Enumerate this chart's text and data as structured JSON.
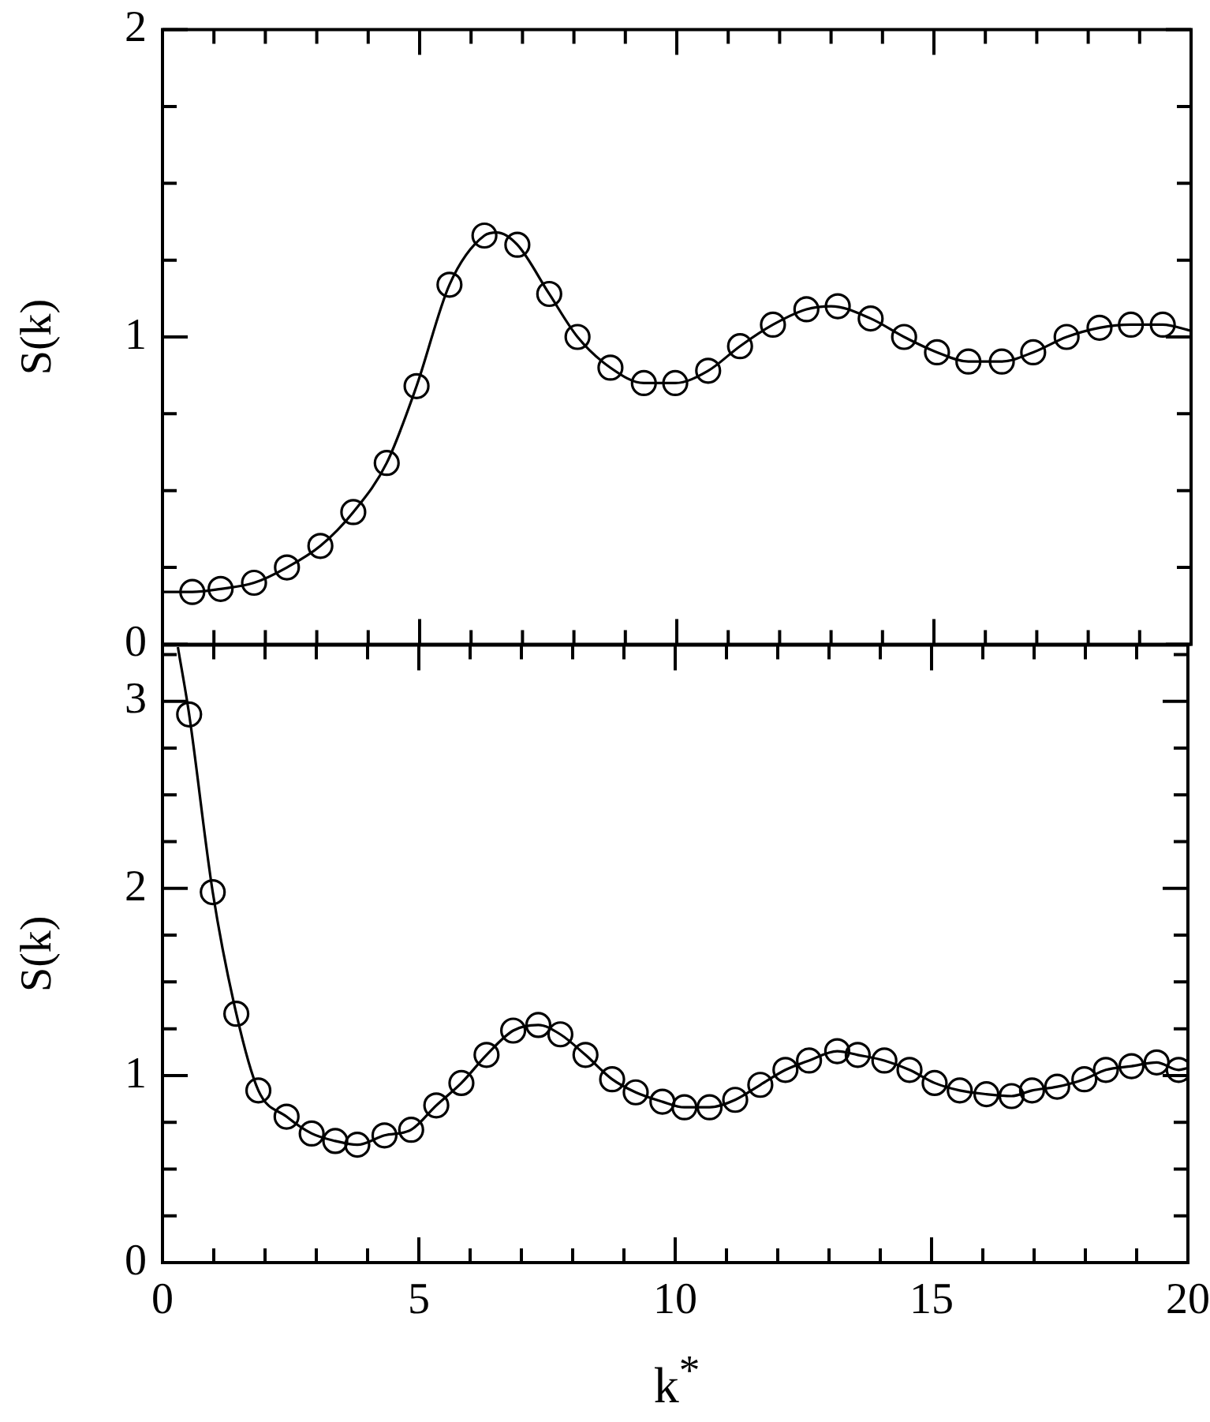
{
  "chart_data": [
    {
      "type": "scatter",
      "ylabel": "S(k)",
      "xlim": [
        0,
        20
      ],
      "ylim": [
        0,
        2
      ],
      "tick_labels": "y",
      "grid": false,
      "legend": false,
      "marker": "circle",
      "xticks": [
        0,
        {
          "value": 1,
          "label": null
        },
        {
          "value": 2,
          "label": null
        },
        {
          "value": 3,
          "label": null
        },
        {
          "value": 4,
          "label": null
        },
        5,
        {
          "value": 6,
          "label": null
        },
        {
          "value": 7,
          "label": null
        },
        {
          "value": 8,
          "label": null
        },
        {
          "value": 9,
          "label": null
        },
        10,
        {
          "value": 11,
          "label": null
        },
        {
          "value": 12,
          "label": null
        },
        {
          "value": 13,
          "label": null
        },
        {
          "value": 14,
          "label": null
        },
        15,
        {
          "value": 16,
          "label": null
        },
        {
          "value": 17,
          "label": null
        },
        {
          "value": 18,
          "label": null
        },
        {
          "value": 19,
          "label": null
        },
        20
      ],
      "yticks": [
        0,
        {
          "value": 0.25,
          "label": null
        },
        {
          "value": 0.5,
          "label": null
        },
        {
          "value": 0.75,
          "label": null
        },
        1,
        {
          "value": 1.25,
          "label": null
        },
        {
          "value": 1.5,
          "label": null
        },
        {
          "value": 1.75,
          "label": null
        },
        2
      ],
      "series": [
        {
          "type": "scatter",
          "color": "#000000",
          "x": [
            0.58,
            1.13,
            1.78,
            2.42,
            3.07,
            3.71,
            4.36,
            4.94,
            5.58,
            6.26,
            6.9,
            7.52,
            8.07,
            8.71,
            9.36,
            9.97,
            10.61,
            11.23,
            11.87,
            12.52,
            13.13,
            13.77,
            14.42,
            15.06,
            15.67,
            16.32,
            16.93,
            17.58,
            18.22,
            18.83,
            19.45
          ],
          "values": [
            0.17,
            0.18,
            0.2,
            0.25,
            0.32,
            0.43,
            0.59,
            0.84,
            1.17,
            1.33,
            1.3,
            1.14,
            1.0,
            0.9,
            0.85,
            0.85,
            0.89,
            0.97,
            1.04,
            1.09,
            1.1,
            1.06,
            1.0,
            0.95,
            0.92,
            0.92,
            0.95,
            1.0,
            1.03,
            1.04,
            1.04
          ]
        },
        {
          "type": "line",
          "color": "#000000",
          "marker": "none",
          "x": [
            0,
            0.58,
            1.13,
            1.78,
            2.42,
            3.07,
            3.71,
            4.36,
            4.94,
            5.58,
            6.26,
            6.5,
            6.9,
            7.52,
            8.07,
            8.71,
            9.36,
            9.97,
            10.61,
            11.23,
            11.87,
            12.52,
            13.0,
            13.77,
            14.42,
            15.06,
            15.67,
            16.32,
            16.93,
            17.58,
            18.22,
            18.83,
            19.45,
            20
          ],
          "values": [
            0.17,
            0.17,
            0.18,
            0.2,
            0.25,
            0.32,
            0.43,
            0.59,
            0.84,
            1.17,
            1.33,
            1.34,
            1.3,
            1.14,
            1.0,
            0.9,
            0.85,
            0.85,
            0.89,
            0.97,
            1.04,
            1.09,
            1.1,
            1.06,
            1.0,
            0.95,
            0.92,
            0.92,
            0.95,
            1.0,
            1.03,
            1.04,
            1.04,
            1.02
          ]
        }
      ]
    },
    {
      "type": "scatter",
      "ylabel": "S(k)",
      "xlabel": "k$^{*}$",
      "xlim": [
        0,
        20
      ],
      "ylim": [
        0,
        3.3
      ],
      "grid": false,
      "legend": false,
      "marker": "circle",
      "xticks": [
        0,
        {
          "value": 1,
          "label": null
        },
        {
          "value": 2,
          "label": null
        },
        {
          "value": 3,
          "label": null
        },
        {
          "value": 4,
          "label": null
        },
        5,
        {
          "value": 6,
          "label": null
        },
        {
          "value": 7,
          "label": null
        },
        {
          "value": 8,
          "label": null
        },
        {
          "value": 9,
          "label": null
        },
        10,
        {
          "value": 11,
          "label": null
        },
        {
          "value": 12,
          "label": null
        },
        {
          "value": 13,
          "label": null
        },
        {
          "value": 14,
          "label": null
        },
        15,
        {
          "value": 16,
          "label": null
        },
        {
          "value": 17,
          "label": null
        },
        {
          "value": 18,
          "label": null
        },
        {
          "value": 19,
          "label": null
        },
        20
      ],
      "yticks": [
        0,
        {
          "value": 0.25,
          "label": null
        },
        {
          "value": 0.5,
          "label": null
        },
        {
          "value": 0.75,
          "label": null
        },
        1,
        {
          "value": 1.25,
          "label": null
        },
        {
          "value": 1.5,
          "label": null
        },
        {
          "value": 1.75,
          "label": null
        },
        2,
        {
          "value": 2.25,
          "label": null
        },
        {
          "value": 2.5,
          "label": null
        },
        {
          "value": 2.75,
          "label": null
        },
        3,
        {
          "value": 3.25,
          "label": null
        }
      ],
      "series": [
        {
          "type": "scatter",
          "color": "#000000",
          "x": [
            0.52,
            0.98,
            1.44,
            1.87,
            2.42,
            2.91,
            3.37,
            3.8,
            4.33,
            4.85,
            5.34,
            5.83,
            6.32,
            6.84,
            7.33,
            7.76,
            8.25,
            8.77,
            9.23,
            9.75,
            10.18,
            10.67,
            11.17,
            11.66,
            12.15,
            12.61,
            13.16,
            13.56,
            14.08,
            14.57,
            15.06,
            15.55,
            16.07,
            16.56,
            16.96,
            17.45,
            17.98,
            18.4,
            18.9,
            19.39,
            19.82
          ],
          "values": [
            2.93,
            1.98,
            1.33,
            0.92,
            0.78,
            0.69,
            0.65,
            0.63,
            0.68,
            0.71,
            0.84,
            0.96,
            1.11,
            1.24,
            1.27,
            1.22,
            1.11,
            0.98,
            0.91,
            0.86,
            0.83,
            0.83,
            0.87,
            0.95,
            1.03,
            1.08,
            1.13,
            1.11,
            1.08,
            1.03,
            0.96,
            0.92,
            0.9,
            0.89,
            0.92,
            0.94,
            0.98,
            1.03,
            1.05,
            1.07,
            1.03
          ]
        },
        {
          "type": "line",
          "color": "#000000",
          "marker": "none",
          "x": [
            0.3,
            0.52,
            0.98,
            1.44,
            1.87,
            2.42,
            2.91,
            3.37,
            3.8,
            4.33,
            4.85,
            5.34,
            5.83,
            6.32,
            6.84,
            7.33,
            7.76,
            8.25,
            8.77,
            9.23,
            9.75,
            10.18,
            10.67,
            11.17,
            11.66,
            12.15,
            12.61,
            13.16,
            13.56,
            14.08,
            14.57,
            15.06,
            15.55,
            16.07,
            16.56,
            16.96,
            17.45,
            17.98,
            18.4,
            18.9,
            19.39,
            19.82,
            20
          ],
          "values": [
            3.29,
            2.93,
            1.98,
            1.33,
            0.92,
            0.78,
            0.69,
            0.65,
            0.63,
            0.68,
            0.71,
            0.84,
            0.96,
            1.11,
            1.24,
            1.27,
            1.22,
            1.11,
            0.98,
            0.91,
            0.86,
            0.83,
            0.83,
            0.87,
            0.95,
            1.03,
            1.08,
            1.13,
            1.11,
            1.08,
            1.03,
            0.96,
            0.92,
            0.9,
            0.89,
            0.92,
            0.94,
            0.98,
            1.03,
            1.05,
            1.07,
            1.03,
            1.04
          ]
        }
      ]
    }
  ]
}
